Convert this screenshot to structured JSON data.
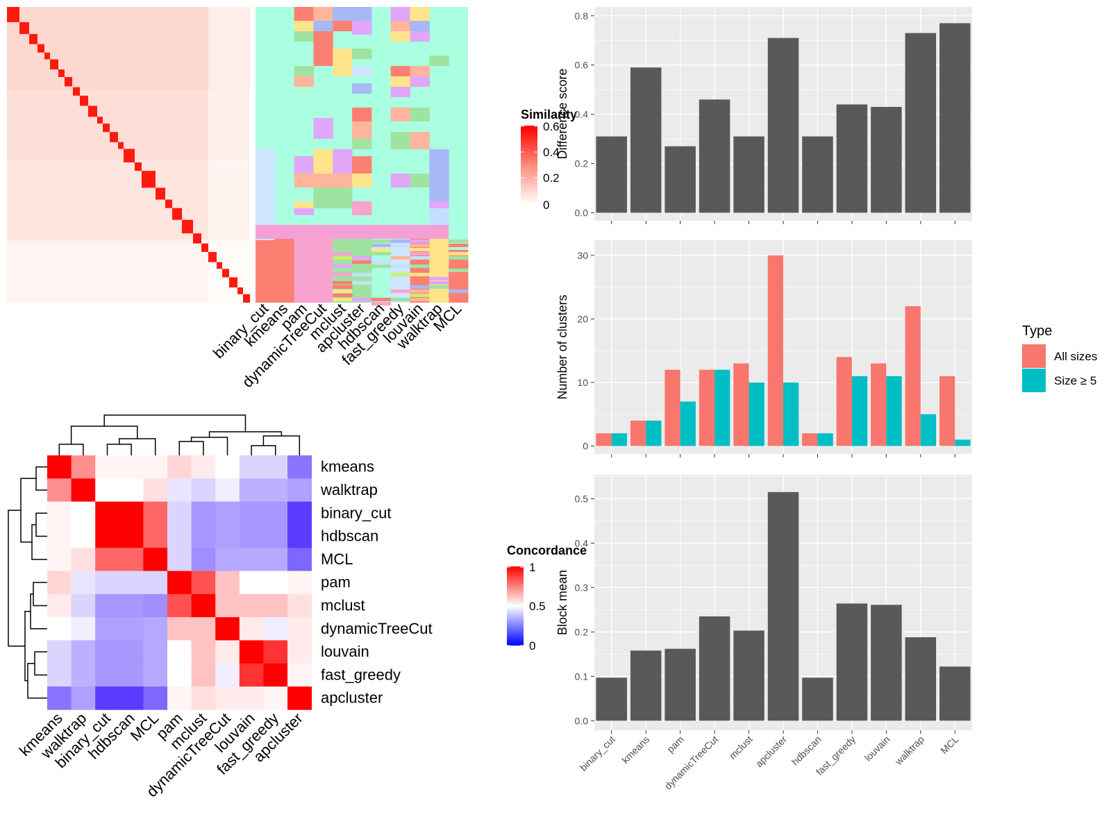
{
  "colors": {
    "panel_bg": "#ebebeb",
    "grid": "#ffffff",
    "bar_dark": "#595959",
    "all_sizes": "#f8766d",
    "size_ge_5": "#00bfc4",
    "hm_red": "#ff0000",
    "hm_white": "#ffffff",
    "hm_blue": "#0000ff",
    "bg_cluster": "#aaffe0"
  },
  "similarity_legend": {
    "title": "Similarity",
    "ticks": [
      "0",
      "0.2",
      "0.4",
      "0.6"
    ]
  },
  "concordance_legend": {
    "title": "Concordance",
    "ticks": [
      "0",
      "0.5",
      "1"
    ]
  },
  "membership_columns": [
    "binary_cut",
    "kmeans",
    "pam",
    "dynamicTreeCut",
    "mclust",
    "apcluster",
    "hdbscan",
    "fast_greedy",
    "louvain",
    "walktrap",
    "MCL"
  ],
  "concordance_labels": [
    "kmeans",
    "walktrap",
    "binary_cut",
    "hdbscan",
    "MCL",
    "pam",
    "mclust",
    "dynamicTreeCut",
    "louvain",
    "fast_greedy",
    "apcluster"
  ],
  "concordance_matrix": [
    [
      1.0,
      0.72,
      0.52,
      0.52,
      0.52,
      0.58,
      0.54,
      0.5,
      0.4,
      0.4,
      0.18
    ],
    [
      0.72,
      1.0,
      0.5,
      0.5,
      0.56,
      0.44,
      0.4,
      0.46,
      0.32,
      0.32,
      0.28
    ],
    [
      0.52,
      0.5,
      1.0,
      1.0,
      0.8,
      0.4,
      0.26,
      0.28,
      0.26,
      0.26,
      0.05
    ],
    [
      0.52,
      0.5,
      1.0,
      1.0,
      0.8,
      0.4,
      0.26,
      0.28,
      0.26,
      0.26,
      0.05
    ],
    [
      0.52,
      0.56,
      0.8,
      0.8,
      1.0,
      0.4,
      0.24,
      0.3,
      0.3,
      0.3,
      0.15
    ],
    [
      0.58,
      0.44,
      0.4,
      0.4,
      0.4,
      1.0,
      0.84,
      0.62,
      0.5,
      0.5,
      0.52
    ],
    [
      0.54,
      0.4,
      0.26,
      0.26,
      0.24,
      0.84,
      1.0,
      0.62,
      0.62,
      0.62,
      0.56
    ],
    [
      0.5,
      0.46,
      0.28,
      0.28,
      0.3,
      0.62,
      0.62,
      1.0,
      0.54,
      0.46,
      0.54
    ],
    [
      0.4,
      0.32,
      0.26,
      0.26,
      0.3,
      0.5,
      0.62,
      0.54,
      1.0,
      0.9,
      0.54
    ],
    [
      0.4,
      0.32,
      0.26,
      0.26,
      0.3,
      0.5,
      0.62,
      0.46,
      0.9,
      1.0,
      0.52
    ],
    [
      0.18,
      0.28,
      0.05,
      0.05,
      0.15,
      0.52,
      0.56,
      0.54,
      0.54,
      0.52,
      1.0
    ]
  ],
  "methods": [
    "binary_cut",
    "kmeans",
    "pam",
    "dynamicTreeCut",
    "mclust",
    "apcluster",
    "hdbscan",
    "fast_greedy",
    "louvain",
    "walktrap",
    "MCL"
  ],
  "chart_data": [
    {
      "type": "bar",
      "ylabel": "Difference score",
      "categories": [
        "binary_cut",
        "kmeans",
        "pam",
        "dynamicTreeCut",
        "mclust",
        "apcluster",
        "hdbscan",
        "fast_greedy",
        "louvain",
        "walktrap",
        "MCL"
      ],
      "values": [
        0.31,
        0.59,
        0.27,
        0.46,
        0.31,
        0.71,
        0.31,
        0.44,
        0.43,
        0.73,
        0.77
      ],
      "ylim": [
        0,
        0.8
      ],
      "yticks": [
        "0.0",
        "0.2",
        "0.4",
        "0.6",
        "0.8"
      ],
      "grid": true
    },
    {
      "type": "bar",
      "ylabel": "Number of clusters",
      "categories": [
        "binary_cut",
        "kmeans",
        "pam",
        "dynamicTreeCut",
        "mclust",
        "apcluster",
        "hdbscan",
        "fast_greedy",
        "louvain",
        "walktrap",
        "MCL"
      ],
      "series": [
        {
          "name": "All sizes",
          "values": [
            2,
            4,
            12,
            12,
            13,
            30,
            2,
            14,
            13,
            22,
            11
          ]
        },
        {
          "name": "Size ≥ 5",
          "values": [
            2,
            4,
            7,
            12,
            10,
            10,
            2,
            11,
            11,
            5,
            1
          ]
        }
      ],
      "legend_title": "Type",
      "legend_position": "right",
      "ylim": [
        0,
        31
      ],
      "yticks": [
        "0",
        "10",
        "20",
        "30"
      ],
      "grid": true
    },
    {
      "type": "bar",
      "ylabel": "Block mean",
      "categories": [
        "binary_cut",
        "kmeans",
        "pam",
        "dynamicTreeCut",
        "mclust",
        "apcluster",
        "hdbscan",
        "fast_greedy",
        "louvain",
        "walktrap",
        "MCL"
      ],
      "values": [
        0.097,
        0.158,
        0.162,
        0.235,
        0.203,
        0.515,
        0.097,
        0.264,
        0.261,
        0.188,
        0.122
      ],
      "ylim": [
        0,
        0.53
      ],
      "yticks": [
        "0.0",
        "0.1",
        "0.2",
        "0.3",
        "0.4",
        "0.5"
      ],
      "grid": true
    }
  ]
}
